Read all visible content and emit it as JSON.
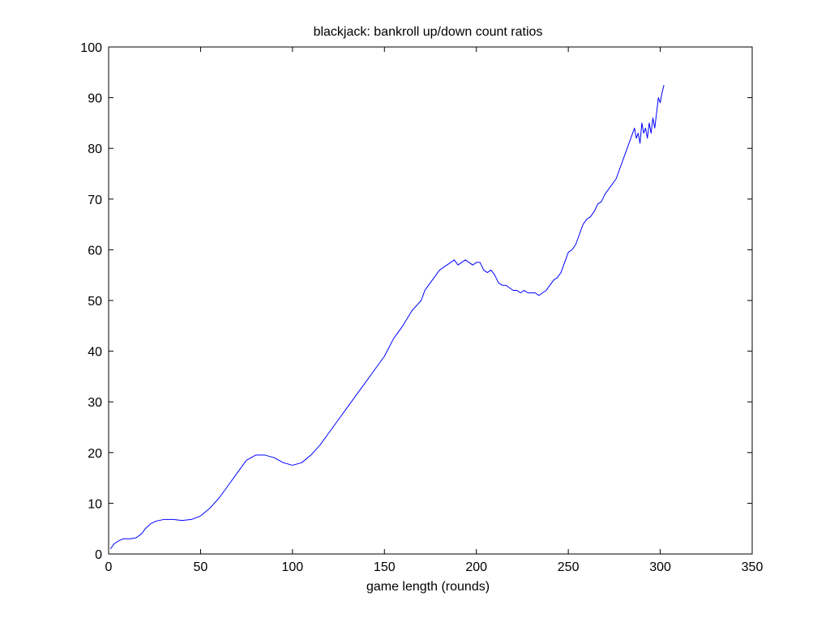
{
  "chart_data": {
    "type": "line",
    "title": "blackjack: bankroll up/down count ratios",
    "xlabel": "game length (rounds)",
    "ylabel": "",
    "xlim": [
      0,
      350
    ],
    "ylim": [
      0,
      100
    ],
    "xticks": [
      0,
      50,
      100,
      150,
      200,
      250,
      300,
      350
    ],
    "yticks": [
      0,
      10,
      20,
      30,
      40,
      50,
      60,
      70,
      80,
      90,
      100
    ],
    "grid": false,
    "legend": "none",
    "series": [
      {
        "color": "#0000ff",
        "x": [
          1,
          3,
          5,
          8,
          10,
          12,
          15,
          18,
          20,
          23,
          26,
          30,
          35,
          40,
          45,
          50,
          55,
          60,
          65,
          70,
          75,
          80,
          85,
          90,
          95,
          100,
          105,
          110,
          115,
          120,
          125,
          130,
          135,
          140,
          145,
          150,
          155,
          160,
          165,
          170,
          172,
          174,
          176,
          178,
          180,
          182,
          184,
          186,
          188,
          190,
          192,
          194,
          196,
          198,
          200,
          202,
          204,
          206,
          208,
          210,
          212,
          214,
          216,
          218,
          220,
          222,
          224,
          226,
          228,
          230,
          232,
          234,
          236,
          238,
          240,
          242,
          244,
          246,
          248,
          250,
          252,
          254,
          256,
          258,
          260,
          262,
          264,
          266,
          268,
          270,
          272,
          274,
          276,
          278,
          280,
          282,
          284,
          285,
          286,
          287,
          288,
          289,
          290,
          291,
          292,
          293,
          294,
          295,
          296,
          297,
          298,
          299,
          300,
          301,
          302
        ],
        "y": [
          1,
          2,
          2.5,
          3,
          3,
          3,
          3.2,
          4,
          5,
          6,
          6.5,
          6.8,
          6.8,
          6.6,
          6.8,
          7.5,
          9,
          11,
          13.5,
          16,
          18.5,
          19.5,
          19.5,
          19,
          18,
          17.5,
          18,
          19.5,
          21.5,
          24,
          26.5,
          29,
          31.5,
          34,
          36.5,
          39,
          42.5,
          45,
          48,
          50,
          52,
          53,
          54,
          55,
          56,
          56.5,
          57,
          57.5,
          58,
          57,
          57.5,
          58,
          57.5,
          57,
          57.5,
          57.5,
          56,
          55.5,
          56,
          55,
          53.5,
          53,
          53,
          52.5,
          52,
          52,
          51.5,
          52,
          51.5,
          51.5,
          51.5,
          51,
          51.5,
          52,
          53,
          54,
          54.5,
          55.5,
          57.5,
          59.5,
          60,
          61,
          63,
          65,
          66,
          66.5,
          67.5,
          69,
          69.5,
          71,
          72,
          73,
          74,
          76,
          78,
          80,
          82,
          83,
          84,
          82,
          83,
          81,
          85,
          83,
          84,
          82,
          85,
          83,
          86,
          84,
          87,
          90,
          89,
          91,
          92.5
        ]
      }
    ]
  }
}
